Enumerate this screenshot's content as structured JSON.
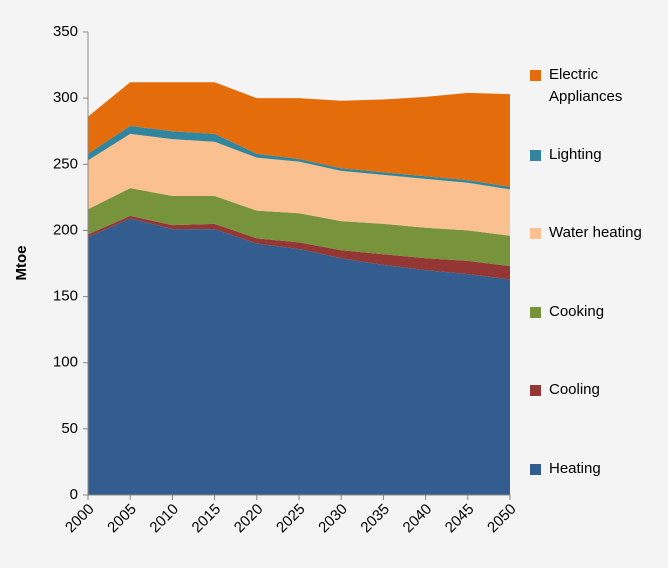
{
  "chart_data": {
    "type": "stacked_area",
    "y_label": "Mtoe",
    "x": [
      2000,
      2005,
      2010,
      2015,
      2020,
      2025,
      2030,
      2035,
      2040,
      2045,
      2050
    ],
    "xlim": [
      2000,
      2050
    ],
    "xticks": [
      2000,
      2005,
      2010,
      2015,
      2020,
      2025,
      2030,
      2035,
      2040,
      2045,
      2050
    ],
    "ylim": [
      0,
      350
    ],
    "yticks": [
      0,
      50,
      100,
      150,
      200,
      250,
      300,
      350
    ],
    "legend": "right",
    "series": [
      {
        "name": "Heating",
        "color": "#345d8f",
        "values": [
          195,
          209,
          201,
          201,
          190,
          186,
          179,
          174,
          170,
          167,
          163
        ]
      },
      {
        "name": "Cooling",
        "color": "#943634",
        "values": [
          2,
          2,
          3,
          4,
          4,
          5,
          6,
          8,
          9,
          10,
          10
        ]
      },
      {
        "name": "Cooking",
        "color": "#77933c",
        "values": [
          19,
          21,
          22,
          21,
          21,
          22,
          22,
          23,
          23,
          23,
          23
        ]
      },
      {
        "name": "Water heating",
        "color": "#fac090",
        "values": [
          37,
          41,
          43,
          41,
          40,
          39,
          38,
          37,
          37,
          36,
          35
        ]
      },
      {
        "name": "Lighting",
        "color": "#31859c",
        "values": [
          5,
          6,
          6,
          6,
          3,
          2,
          2,
          2,
          2,
          2,
          2
        ]
      },
      {
        "name": "Electric Appliances",
        "color": "#e46c0a",
        "values": [
          28,
          33,
          37,
          39,
          42,
          46,
          51,
          55,
          60,
          66,
          70
        ]
      }
    ]
  }
}
